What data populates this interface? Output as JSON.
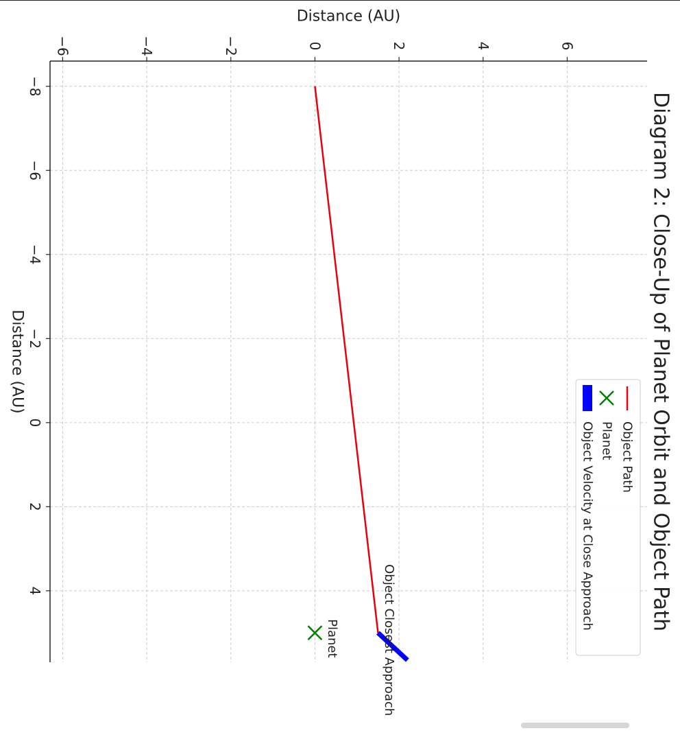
{
  "chart_data": {
    "type": "line",
    "title": "Diagram 2: Close-Up of Planet Orbit and Object Path",
    "xlabel": "Distance (AU)",
    "ylabel": "Distance (AU)",
    "xlim": [
      -8.6,
      5.7
    ],
    "ylim": [
      -6.3,
      7.9
    ],
    "x_ticks": [
      -8,
      -6,
      -4,
      -2,
      0,
      2,
      4
    ],
    "y_ticks": [
      -6,
      -4,
      -2,
      0,
      2,
      4,
      6
    ],
    "x_tick_labels": [
      "−8",
      "−6",
      "−4",
      "−2",
      "0",
      "2",
      "4"
    ],
    "y_tick_labels": [
      "−6",
      "−4",
      "−2",
      "0",
      "2",
      "4",
      "6"
    ],
    "grid": true,
    "legend_position": "upper-right",
    "series": [
      {
        "name": "Object Path",
        "type": "line",
        "color": "#e8000b",
        "x": [
          -8,
          5
        ],
        "y": [
          0,
          1.5
        ]
      },
      {
        "name": "Planet",
        "type": "scatter",
        "marker": "x",
        "color": "#008000",
        "x": [
          5
        ],
        "y": [
          0
        ]
      },
      {
        "name": "Object Velocity at Close Approach",
        "type": "arrow",
        "color": "#0000ff",
        "x": [
          5,
          5.65
        ],
        "y": [
          1.5,
          2.2
        ]
      }
    ],
    "annotations": [
      {
        "text": "Planet",
        "x": 5,
        "y": 0
      },
      {
        "text": "Object Closest Approach",
        "x": 5,
        "y": 1.5
      }
    ]
  }
}
